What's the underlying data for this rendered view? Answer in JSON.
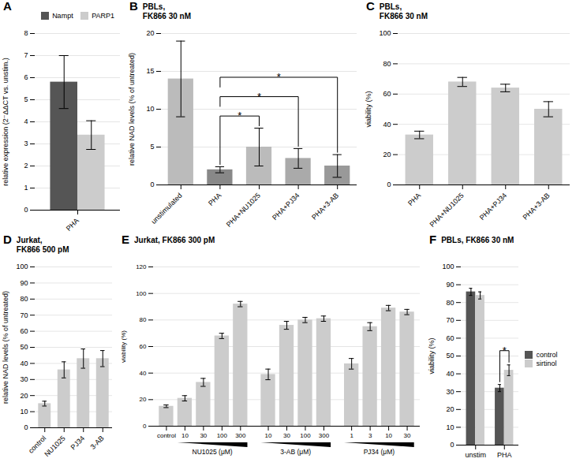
{
  "chart_data": [
    {
      "type": "bar",
      "categories": [
        "PHA"
      ],
      "series": [
        {
          "name": "Nampt",
          "color": "#555555",
          "values": [
            5.8
          ],
          "errors": [
            1.2
          ]
        },
        {
          "name": "PARP1",
          "color": "#cccccc",
          "values": [
            3.4
          ],
          "errors": [
            0.65
          ]
        }
      ],
      "ylabel": "relative expression (2⁻ΔΔCT vs. unstim.)",
      "ylim": [
        0,
        8
      ],
      "yticks": [
        0,
        1,
        2,
        3,
        4,
        5,
        6,
        7,
        8
      ],
      "grid": true,
      "legend": "upper right",
      "annotations": [
        {
          "text": "A"
        }
      ]
    },
    {
      "type": "bar",
      "title": "PBLs,\nFK866 30 nM",
      "categories": [
        "unstimulated",
        "PHA",
        "PHA+NU1025",
        "PHA+PJ34",
        "PHA+3-AB"
      ],
      "values": [
        14.0,
        2.0,
        5.0,
        3.5,
        2.5
      ],
      "errors": [
        5.0,
        0.4,
        2.5,
        1.3,
        1.5
      ],
      "colors": [
        "#bbbbbb",
        "#888888",
        "#bbbbbb",
        "#aaaaaa",
        "#999999"
      ],
      "ylabel": "relative NAD levels (% of untreated)",
      "ylim": [
        0,
        20
      ],
      "yticks": [
        0,
        5,
        10,
        15,
        20
      ],
      "grid": true,
      "annotations": [
        {
          "text": "B"
        },
        {
          "text": "*",
          "from": "PHA",
          "to": "PHA+NU1025"
        },
        {
          "text": "*",
          "from": "PHA",
          "to": "PHA+PJ34"
        },
        {
          "text": "*",
          "from": "PHA",
          "to": "PHA+3-AB"
        }
      ]
    },
    {
      "type": "bar",
      "title": "PBLs,\nFK866 30 nM",
      "categories": [
        "PHA",
        "PHA+NU1025",
        "PHA+PJ34",
        "PHA+3-AB"
      ],
      "values": [
        33,
        68,
        64,
        50
      ],
      "errors": [
        2.5,
        3,
        2.5,
        5
      ],
      "color": "#cccccc",
      "ylabel": "viability (%)",
      "ylim": [
        0,
        100
      ],
      "yticks": [
        0,
        20,
        40,
        60,
        80,
        100
      ],
      "grid": true,
      "annotations": [
        {
          "text": "C"
        }
      ]
    },
    {
      "type": "bar",
      "title": "Jurkat,\nFK866 500 pM",
      "categories": [
        "control",
        "NU1025",
        "PJ34",
        "3-AB"
      ],
      "values": [
        15,
        36,
        43,
        43
      ],
      "errors": [
        1.5,
        5,
        6,
        5
      ],
      "color": "#cccccc",
      "ylabel": "relative NAD levels (% of untreated)",
      "ylim": [
        0,
        100
      ],
      "yticks": [
        0,
        10,
        20,
        30,
        40,
        50,
        60,
        70,
        80,
        90,
        100
      ],
      "grid": true,
      "annotations": [
        {
          "text": "D"
        }
      ]
    },
    {
      "type": "bar",
      "title": "Jurkat, FK866 300 pM",
      "categories": [
        "control",
        "10",
        "30",
        "100",
        "300",
        "10",
        "30",
        "100",
        "300",
        "1",
        "3",
        "10",
        "30"
      ],
      "values": [
        15,
        21,
        33,
        68,
        92,
        39,
        76,
        80,
        81,
        47,
        75,
        89,
        86
      ],
      "errors": [
        1,
        2,
        3,
        2,
        2,
        4,
        3,
        2,
        2,
        4,
        3,
        2,
        2
      ],
      "groups": [
        {
          "label": "NU1025 (μM)",
          "categories": [
            "10",
            "30",
            "100",
            "300"
          ]
        },
        {
          "label": "3-AB (μM)",
          "categories": [
            "10",
            "30",
            "100",
            "300"
          ]
        },
        {
          "label": "PJ34 (μM)",
          "categories": [
            "1",
            "3",
            "10",
            "30"
          ]
        }
      ],
      "color": "#cccccc",
      "ylabel": "viability (%)",
      "ylim": [
        0,
        120
      ],
      "yticks": [
        0,
        20,
        40,
        60,
        80,
        100,
        120
      ],
      "grid": true,
      "annotations": [
        {
          "text": "E"
        }
      ]
    },
    {
      "type": "bar",
      "title": "PBLs, FK866 30 nM",
      "categories": [
        "unstim",
        "PHA"
      ],
      "series": [
        {
          "name": "control",
          "color": "#555555",
          "values": [
            86,
            32
          ],
          "errors": [
            2,
            2
          ]
        },
        {
          "name": "sirtinol",
          "color": "#cccccc",
          "values": [
            84,
            42
          ],
          "errors": [
            2,
            3
          ]
        }
      ],
      "ylabel": "viability (%)",
      "ylim": [
        0,
        100
      ],
      "yticks": [
        0,
        10,
        20,
        30,
        40,
        50,
        60,
        70,
        80,
        90,
        100
      ],
      "grid": true,
      "legend": "center right",
      "annotations": [
        {
          "text": "F"
        },
        {
          "text": "*",
          "category": "PHA",
          "from": "control",
          "to": "sirtinol"
        }
      ]
    }
  ]
}
